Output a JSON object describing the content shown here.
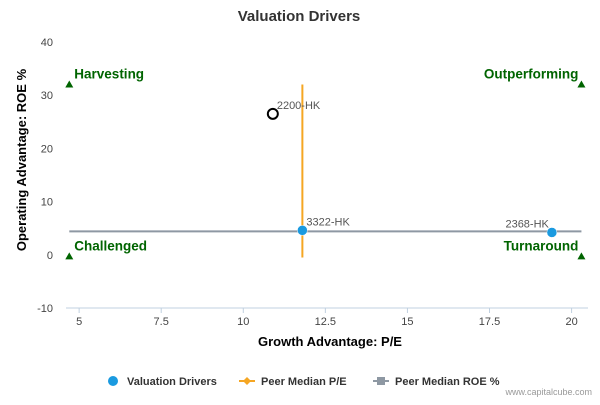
{
  "chart_data": {
    "type": "scatter",
    "title": "Valuation Drivers",
    "xlabel": "Growth Advantage: P/E",
    "ylabel": "Operating Advantage: ROE %",
    "xlim": [
      4.6,
      20.5
    ],
    "ylim": [
      -10,
      40
    ],
    "x_ticks": [
      5,
      7.5,
      10,
      12.5,
      15,
      17.5,
      20
    ],
    "x_tick_labels": [
      "5",
      "7.5",
      "10",
      "12.5",
      "15",
      "17.5",
      "20"
    ],
    "y_ticks": [
      -10,
      0,
      10,
      20,
      30,
      40
    ],
    "y_tick_labels": [
      "-10",
      "0",
      "10",
      "20",
      "30",
      "40"
    ],
    "grid": false,
    "points": [
      {
        "label": "2200-HK",
        "x": 10.9,
        "y": 26.5,
        "style": "hollow"
      },
      {
        "label": "3322-HK",
        "x": 11.8,
        "y": 4.6,
        "style": "filled"
      },
      {
        "label": "2368-HK",
        "x": 19.4,
        "y": 4.2,
        "style": "filled"
      }
    ],
    "peer_median_pe": {
      "x": 11.8,
      "y_range": [
        -0.5,
        32
      ]
    },
    "peer_median_roe": {
      "y": 4.4,
      "x_range": [
        4.7,
        20.3
      ]
    },
    "quadrants": [
      {
        "label": "Harvesting",
        "x": 4.7,
        "y": 32,
        "anchor": "start"
      },
      {
        "label": "Outperforming",
        "x": 20.3,
        "y": 32,
        "anchor": "end"
      },
      {
        "label": "Challenged",
        "x": 4.7,
        "y": -0.3,
        "anchor": "start"
      },
      {
        "label": "Turnaround",
        "x": 20.3,
        "y": -0.3,
        "anchor": "end"
      }
    ],
    "legend": {
      "placement": "bottom",
      "items": [
        {
          "name": "Valuation Drivers",
          "marker": "circle",
          "color": "#1a9ae0"
        },
        {
          "name": "Peer Median P/E",
          "marker": "line-diamond",
          "color": "#f5a623"
        },
        {
          "name": "Peer Median ROE %",
          "marker": "line-square",
          "color": "#8e98a3"
        }
      ]
    }
  },
  "credit": "www.capitalcube.com",
  "colors": {
    "point": "#1a9ae0",
    "pe_line": "#f5a623",
    "roe_line": "#8e98a3",
    "quadrant": "#006400",
    "axis": "#c0d0e0"
  }
}
